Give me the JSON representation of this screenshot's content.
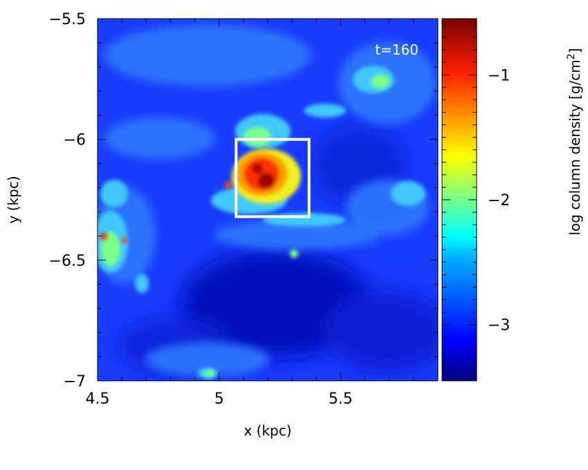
{
  "chart_data": {
    "type": "heatmap",
    "time_label": "t=160",
    "xlabel": "x (kpc)",
    "ylabel": "y (kpc)",
    "xlim": [
      4.5,
      5.9
    ],
    "ylim": [
      -7.0,
      -5.5
    ],
    "xticks": [
      4.5,
      5,
      5.5
    ],
    "xtick_labels": [
      "4.5",
      "5",
      "5.5"
    ],
    "yticks": [
      -5.5,
      -6,
      -6.5,
      -7
    ],
    "ytick_labels": [
      "−5.5",
      "−6",
      "−6.5",
      "−7"
    ],
    "colorbar": {
      "label": "log column density [g/cm",
      "label_sup": "2",
      "label_end": "]",
      "range": [
        -3.45,
        -0.55
      ],
      "ticks": [
        -1,
        -2,
        -3
      ],
      "tick_labels": [
        "−1",
        "−2",
        "−3"
      ],
      "colormap": "jet"
    },
    "highlight_box": {
      "x": [
        5.07,
        5.37
      ],
      "y": [
        -6.32,
        -6.0
      ],
      "color": "#ffffff"
    },
    "features": [
      {
        "x": 5.18,
        "y": -6.17,
        "log_density": -0.7
      },
      {
        "x": 5.15,
        "y": -6.12,
        "log_density": -1.1
      },
      {
        "x": 5.25,
        "y": -6.22,
        "log_density": -1.3
      },
      {
        "x": 4.55,
        "y": -6.43,
        "log_density": -1.8
      },
      {
        "x": 5.7,
        "y": -5.75,
        "log_density": -2.3
      },
      {
        "x": 5.3,
        "y": -6.47,
        "log_density": -2.4
      },
      {
        "x": 4.98,
        "y": -6.97,
        "log_density": -2.3
      },
      {
        "x": 5.2,
        "y": -6.7,
        "log_density": -3.3
      }
    ]
  }
}
